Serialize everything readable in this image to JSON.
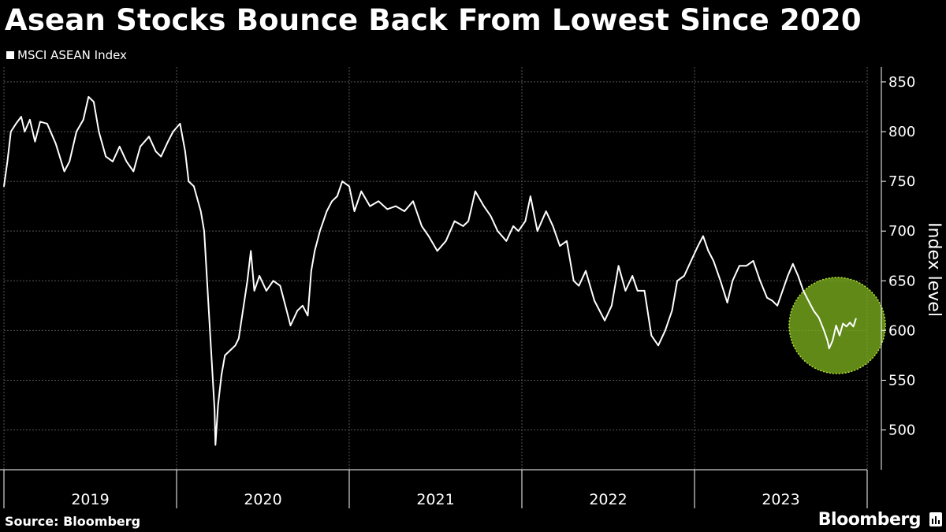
{
  "title": "Asean Stocks Bounce Back From Lowest Since 2020",
  "source": "Source: Bloomberg",
  "brand": "Bloomberg",
  "brand_icon": "bloomberg-terminal-icon",
  "colors": {
    "background": "#000000",
    "line": "#ffffff",
    "grid": "#555555",
    "highlight": "#7bb01e"
  },
  "chart_data": {
    "type": "line",
    "title": "Asean Stocks Bounce Back From Lowest Since 2020",
    "ylabel": "Index level",
    "ylim": [
      460,
      865
    ],
    "yticks": [
      500,
      550,
      600,
      650,
      700,
      750,
      800,
      850
    ],
    "xlim": [
      2019.0,
      2024.0
    ],
    "xticks": [
      "2019",
      "2020",
      "2021",
      "2022",
      "2023"
    ],
    "grid": true,
    "legend_position": "top-left",
    "series": [
      {
        "name": "MSCI ASEAN Index",
        "points": [
          [
            2019.0,
            745
          ],
          [
            2019.02,
            770
          ],
          [
            2019.04,
            800
          ],
          [
            2019.07,
            808
          ],
          [
            2019.1,
            815
          ],
          [
            2019.12,
            800
          ],
          [
            2019.15,
            812
          ],
          [
            2019.18,
            790
          ],
          [
            2019.21,
            810
          ],
          [
            2019.25,
            808
          ],
          [
            2019.3,
            788
          ],
          [
            2019.35,
            760
          ],
          [
            2019.38,
            770
          ],
          [
            2019.42,
            800
          ],
          [
            2019.46,
            812
          ],
          [
            2019.49,
            835
          ],
          [
            2019.52,
            830
          ],
          [
            2019.55,
            800
          ],
          [
            2019.59,
            775
          ],
          [
            2019.63,
            770
          ],
          [
            2019.67,
            785
          ],
          [
            2019.71,
            770
          ],
          [
            2019.75,
            760
          ],
          [
            2019.79,
            785
          ],
          [
            2019.84,
            795
          ],
          [
            2019.88,
            780
          ],
          [
            2019.91,
            775
          ],
          [
            2019.95,
            790
          ],
          [
            2019.98,
            800
          ],
          [
            2020.02,
            808
          ],
          [
            2020.05,
            780
          ],
          [
            2020.07,
            750
          ],
          [
            2020.1,
            745
          ],
          [
            2020.14,
            720
          ],
          [
            2020.16,
            700
          ],
          [
            2020.18,
            640
          ],
          [
            2020.2,
            580
          ],
          [
            2020.22,
            520
          ],
          [
            2020.225,
            485
          ],
          [
            2020.24,
            525
          ],
          [
            2020.26,
            555
          ],
          [
            2020.28,
            575
          ],
          [
            2020.31,
            580
          ],
          [
            2020.34,
            585
          ],
          [
            2020.36,
            592
          ],
          [
            2020.38,
            615
          ],
          [
            2020.41,
            650
          ],
          [
            2020.43,
            680
          ],
          [
            2020.45,
            640
          ],
          [
            2020.48,
            655
          ],
          [
            2020.52,
            640
          ],
          [
            2020.56,
            650
          ],
          [
            2020.6,
            645
          ],
          [
            2020.63,
            625
          ],
          [
            2020.66,
            605
          ],
          [
            2020.7,
            620
          ],
          [
            2020.73,
            625
          ],
          [
            2020.76,
            615
          ],
          [
            2020.78,
            660
          ],
          [
            2020.8,
            680
          ],
          [
            2020.83,
            700
          ],
          [
            2020.87,
            720
          ],
          [
            2020.9,
            730
          ],
          [
            2020.93,
            735
          ],
          [
            2020.96,
            750
          ],
          [
            2021.0,
            745
          ],
          [
            2021.03,
            720
          ],
          [
            2021.07,
            740
          ],
          [
            2021.12,
            725
          ],
          [
            2021.17,
            730
          ],
          [
            2021.22,
            722
          ],
          [
            2021.27,
            725
          ],
          [
            2021.32,
            720
          ],
          [
            2021.37,
            730
          ],
          [
            2021.42,
            705
          ],
          [
            2021.46,
            695
          ],
          [
            2021.51,
            680
          ],
          [
            2021.56,
            690
          ],
          [
            2021.61,
            710
          ],
          [
            2021.66,
            705
          ],
          [
            2021.69,
            710
          ],
          [
            2021.73,
            740
          ],
          [
            2021.78,
            725
          ],
          [
            2021.82,
            715
          ],
          [
            2021.86,
            700
          ],
          [
            2021.91,
            690
          ],
          [
            2021.95,
            705
          ],
          [
            2021.98,
            700
          ],
          [
            2022.02,
            710
          ],
          [
            2022.05,
            735
          ],
          [
            2022.09,
            700
          ],
          [
            2022.14,
            720
          ],
          [
            2022.18,
            705
          ],
          [
            2022.22,
            685
          ],
          [
            2022.26,
            690
          ],
          [
            2022.3,
            650
          ],
          [
            2022.33,
            645
          ],
          [
            2022.37,
            660
          ],
          [
            2022.42,
            630
          ],
          [
            2022.48,
            610
          ],
          [
            2022.52,
            625
          ],
          [
            2022.56,
            665
          ],
          [
            2022.6,
            640
          ],
          [
            2022.64,
            655
          ],
          [
            2022.67,
            640
          ],
          [
            2022.71,
            640
          ],
          [
            2022.75,
            595
          ],
          [
            2022.79,
            585
          ],
          [
            2022.83,
            600
          ],
          [
            2022.87,
            620
          ],
          [
            2022.9,
            650
          ],
          [
            2022.94,
            655
          ],
          [
            2022.98,
            670
          ],
          [
            2023.02,
            685
          ],
          [
            2023.05,
            695
          ],
          [
            2023.08,
            680
          ],
          [
            2023.11,
            670
          ],
          [
            2023.15,
            650
          ],
          [
            2023.19,
            628
          ],
          [
            2023.22,
            650
          ],
          [
            2023.26,
            665
          ],
          [
            2023.3,
            665
          ],
          [
            2023.34,
            670
          ],
          [
            2023.38,
            650
          ],
          [
            2023.42,
            633
          ],
          [
            2023.45,
            630
          ],
          [
            2023.48,
            625
          ],
          [
            2023.51,
            640
          ],
          [
            2023.54,
            655
          ],
          [
            2023.57,
            667
          ],
          [
            2023.6,
            655
          ],
          [
            2023.63,
            640
          ],
          [
            2023.66,
            630
          ],
          [
            2023.69,
            620
          ],
          [
            2023.72,
            613
          ],
          [
            2023.75,
            600
          ],
          [
            2023.77,
            590
          ],
          [
            2023.78,
            582
          ],
          [
            2023.8,
            590
          ],
          [
            2023.82,
            605
          ],
          [
            2023.84,
            595
          ],
          [
            2023.86,
            607
          ],
          [
            2023.88,
            604
          ],
          [
            2023.9,
            608
          ],
          [
            2023.92,
            604
          ],
          [
            2023.935,
            612
          ]
        ]
      }
    ]
  }
}
